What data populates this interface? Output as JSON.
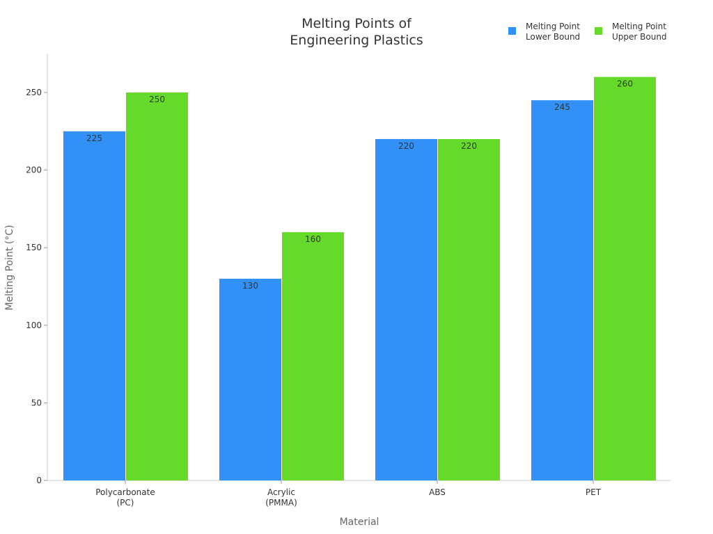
{
  "chart_data": {
    "type": "bar",
    "title": [
      "Melting Points of",
      "Engineering Plastics"
    ],
    "xlabel": "Material",
    "ylabel": "Melting Point (°C)",
    "categories": [
      [
        "Polycarbonate",
        "(PC)"
      ],
      [
        "Acrylic",
        "(PMMA)"
      ],
      [
        "ABS"
      ],
      [
        "PET"
      ]
    ],
    "series": [
      {
        "name": [
          "Melting Point",
          "Lower Bound"
        ],
        "color": "#3291F7",
        "values": [
          225,
          130,
          220,
          245
        ]
      },
      {
        "name": [
          "Melting Point",
          "Upper Bound"
        ],
        "color": "#66DA2A",
        "values": [
          250,
          160,
          220,
          260
        ]
      }
    ],
    "ylim": [
      0,
      275
    ],
    "yticks": [
      0,
      50,
      100,
      150,
      200,
      250
    ],
    "grid": false,
    "legend": "top-right",
    "data_labels": true
  }
}
